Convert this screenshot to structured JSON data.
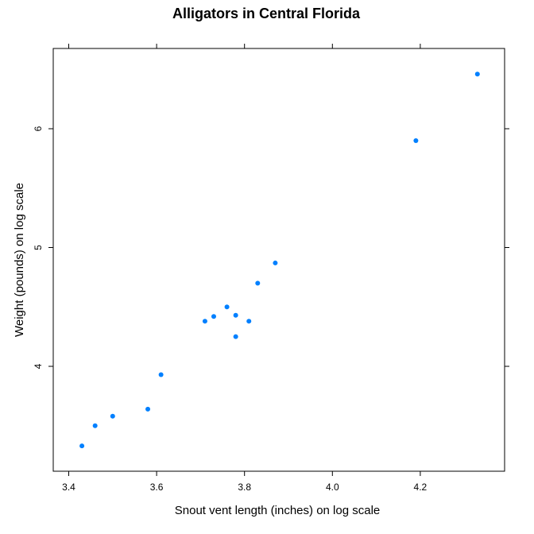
{
  "chart_data": {
    "type": "scatter",
    "title": "Alligators in Central Florida",
    "xlabel": "Snout vent length (inches) on log scale",
    "ylabel": "Weight (pounds) on log scale",
    "xlim": [
      3.4,
      4.4
    ],
    "ylim": [
      3.2,
      6.6
    ],
    "x_ticks": [
      3.4,
      3.6,
      3.8,
      4.0,
      4.2
    ],
    "x_tick_labels": [
      "3.4",
      "3.6",
      "3.8",
      "4.0",
      "4.2"
    ],
    "y_ticks": [
      4,
      5,
      6
    ],
    "y_tick_labels": [
      "4",
      "5",
      "6"
    ],
    "grid": false,
    "legend": "none",
    "marker_color": "#0080ff",
    "points": [
      {
        "x": 3.43,
        "y": 3.33
      },
      {
        "x": 3.46,
        "y": 3.5
      },
      {
        "x": 3.5,
        "y": 3.58
      },
      {
        "x": 3.58,
        "y": 3.64
      },
      {
        "x": 3.61,
        "y": 3.93
      },
      {
        "x": 3.71,
        "y": 4.38
      },
      {
        "x": 3.73,
        "y": 4.42
      },
      {
        "x": 3.76,
        "y": 4.5
      },
      {
        "x": 3.78,
        "y": 4.43
      },
      {
        "x": 3.78,
        "y": 4.25
      },
      {
        "x": 3.81,
        "y": 4.38
      },
      {
        "x": 3.83,
        "y": 4.7
      },
      {
        "x": 3.87,
        "y": 4.87
      },
      {
        "x": 4.19,
        "y": 5.9
      },
      {
        "x": 4.33,
        "y": 6.46
      }
    ]
  }
}
